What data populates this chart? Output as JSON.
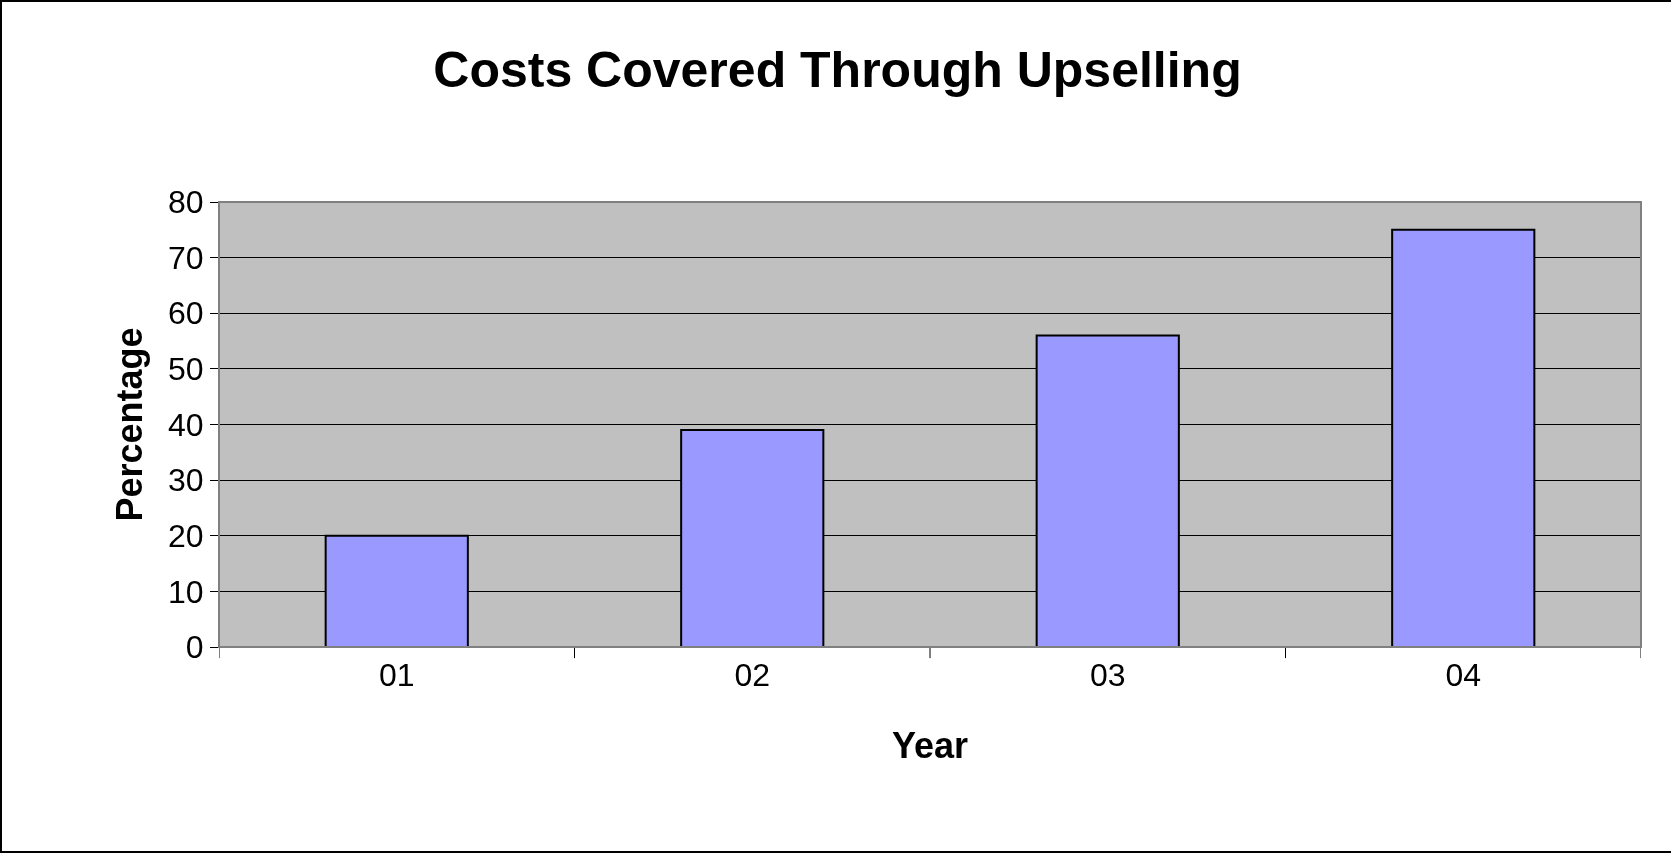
{
  "chart_data": {
    "type": "bar",
    "title": "Costs Covered Through Upselling",
    "xlabel": "Year",
    "ylabel": "Percentage",
    "categories": [
      "01",
      "02",
      "03",
      "04"
    ],
    "values": [
      20,
      39,
      56,
      75
    ],
    "color": "#9999ff",
    "ylim": [
      0,
      80
    ],
    "yticks": [
      0,
      10,
      20,
      30,
      40,
      50,
      60,
      70,
      80
    ],
    "grid": "y",
    "legend": false
  }
}
